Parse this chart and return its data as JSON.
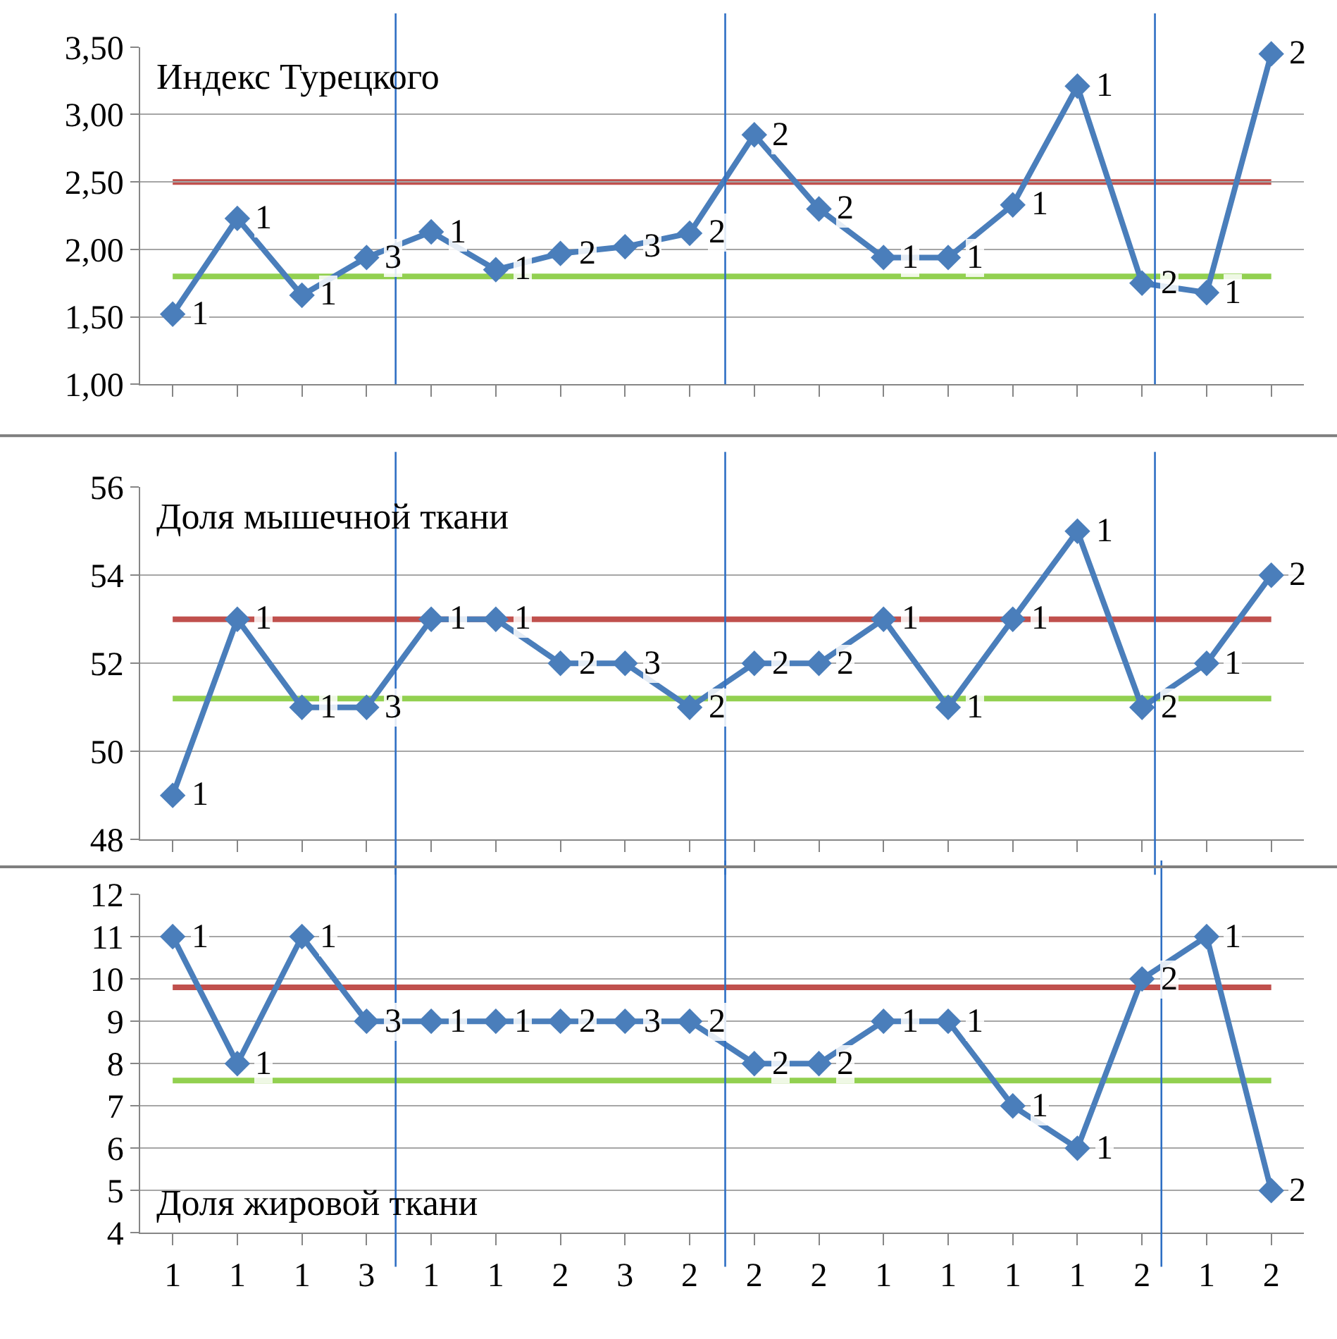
{
  "chart_data": [
    {
      "type": "line",
      "title": "Индекс Турецкого",
      "categories": [
        null,
        null,
        null,
        null,
        null,
        null,
        null,
        null,
        null,
        null,
        null,
        null,
        null,
        null,
        null,
        null,
        null,
        null
      ],
      "series": [
        {
          "color": "#4a7ebb",
          "values": [
            1.52,
            2.23,
            1.66,
            1.94,
            2.13,
            1.85,
            1.97,
            2.02,
            2.12,
            2.85,
            2.3,
            1.94,
            1.94,
            2.33,
            3.21,
            1.75,
            1.68,
            3.45
          ]
        }
      ],
      "annotations": [
        "1",
        "1",
        "1",
        "3",
        "1",
        "1",
        "2",
        "3",
        "2",
        "2",
        "2",
        "1",
        "1",
        "1",
        "1",
        "2",
        "1",
        "2"
      ],
      "ylim": [
        1.0,
        3.5
      ],
      "yticks": [
        {
          "value": 1.0,
          "label": "1,00"
        },
        {
          "value": 1.5,
          "label": "1,50"
        },
        {
          "value": 2.0,
          "label": "2,00"
        },
        {
          "value": 2.5,
          "label": "2,50"
        },
        {
          "value": 3.0,
          "label": "3,00"
        },
        {
          "value": 3.5,
          "label": "3,50"
        }
      ],
      "ref_lines": [
        {
          "axis": "y",
          "value": 2.5,
          "color": "#c0504d"
        },
        {
          "axis": "y",
          "value": 1.8,
          "color": "#92d050"
        }
      ],
      "grid": "y",
      "marker": "diamond",
      "tick_labels": "y"
    },
    {
      "type": "line",
      "title": "Доля мышечной ткани",
      "categories": [
        null,
        null,
        null,
        null,
        null,
        null,
        null,
        null,
        null,
        null,
        null,
        null,
        null,
        null,
        null,
        null,
        null,
        null
      ],
      "series": [
        {
          "color": "#4a7ebb",
          "values": [
            49,
            53,
            51,
            51,
            53,
            53,
            52,
            52,
            51,
            52,
            52,
            53,
            51,
            53,
            55,
            51,
            52,
            54
          ]
        }
      ],
      "annotations": [
        "1",
        "1",
        "1",
        "3",
        "1",
        "1",
        "2",
        "3",
        "2",
        "2",
        "2",
        "1",
        "1",
        "1",
        "1",
        "2",
        "1",
        "2"
      ],
      "ylim": [
        48,
        56
      ],
      "yticks": [
        48,
        50,
        52,
        54,
        56
      ],
      "ref_lines": [
        {
          "axis": "y",
          "value": 53,
          "color": "#c0504d"
        },
        {
          "axis": "y",
          "value": 51.2,
          "color": "#92d050"
        }
      ],
      "grid": "y",
      "marker": "diamond",
      "tick_labels": "y"
    },
    {
      "type": "line",
      "title": "Доля жировой ткани",
      "categories": [
        "1",
        "1",
        "1",
        "3",
        "1",
        "1",
        "2",
        "3",
        "2",
        "2",
        "2",
        "1",
        "1",
        "1",
        "1",
        "2",
        "1",
        "2"
      ],
      "series": [
        {
          "color": "#4a7ebb",
          "values": [
            11,
            8,
            11,
            9,
            9,
            9,
            9,
            9,
            9,
            8,
            8,
            9,
            9,
            7,
            6,
            10,
            11,
            5
          ]
        }
      ],
      "annotations": [
        "1",
        "1",
        "1",
        "3",
        "1",
        "1",
        "2",
        "3",
        "2",
        "2",
        "2",
        "1",
        "1",
        "1",
        "1",
        "2",
        "1",
        "2"
      ],
      "ylim": [
        4,
        12
      ],
      "yticks": [
        4,
        5,
        6,
        7,
        8,
        9,
        10,
        11,
        12
      ],
      "ref_lines": [
        {
          "axis": "y",
          "value": 9.8,
          "color": "#c0504d"
        },
        {
          "axis": "y",
          "value": 7.6,
          "color": "#92d050"
        }
      ],
      "grid": "y",
      "marker": "diamond"
    }
  ]
}
